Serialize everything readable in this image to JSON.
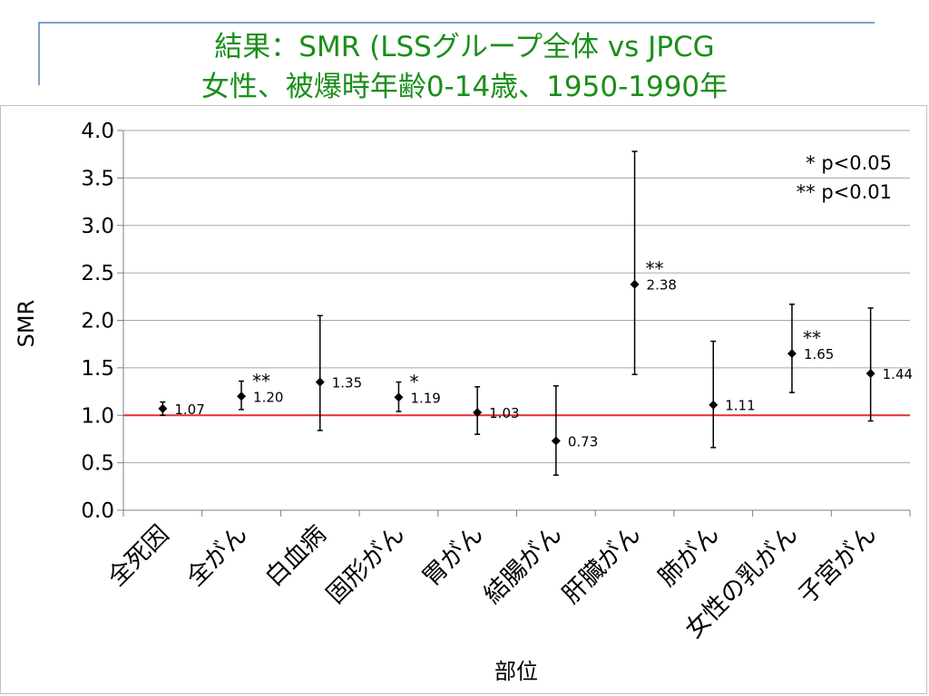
{
  "slide": {
    "title_line1": "結果：SMR (LSSグループ全体 vs JPCG",
    "title_line2": "女性、被爆時年齢0-14歳、1950-1990年"
  },
  "legend": {
    "line1": "* p<0.05",
    "line2": "** p<0.01"
  },
  "colors": {
    "title": "#1a8f1a",
    "reference_line": "#e03030",
    "grid": "#a6a6a6",
    "marker": "#000000"
  },
  "chart_data": {
    "type": "scatter",
    "ylabel": "SMR",
    "xlabel": "部位",
    "ylim": [
      0,
      4.0
    ],
    "y_ticks": [
      "0.0",
      "0.5",
      "1.0",
      "1.5",
      "2.0",
      "2.5",
      "3.0",
      "3.5",
      "4.0"
    ],
    "grid": "horizontal",
    "reference_line": 1.0,
    "categories": [
      "全死因",
      "全がん",
      "白血病",
      "固形がん",
      "胃がん",
      "結腸がん",
      "肝臓がん",
      "肺がん",
      "女性の乳がん",
      "子宮がん"
    ],
    "values": [
      1.07,
      1.2,
      1.35,
      1.19,
      1.03,
      0.73,
      2.38,
      1.11,
      1.65,
      1.44
    ],
    "value_labels": [
      "1.07",
      "1.20",
      "1.35",
      "1.19",
      "1.03",
      "0.73",
      "2.38",
      "1.11",
      "1.65",
      "1.44"
    ],
    "ci_lower": [
      1.0,
      1.06,
      0.84,
      1.04,
      0.8,
      0.37,
      1.43,
      0.66,
      1.24,
      0.94
    ],
    "ci_upper": [
      1.14,
      1.36,
      2.05,
      1.35,
      1.3,
      1.31,
      3.78,
      1.78,
      2.17,
      2.13
    ],
    "significance": [
      "",
      "**",
      "",
      "*",
      "",
      "",
      "**",
      "",
      "**",
      ""
    ]
  }
}
